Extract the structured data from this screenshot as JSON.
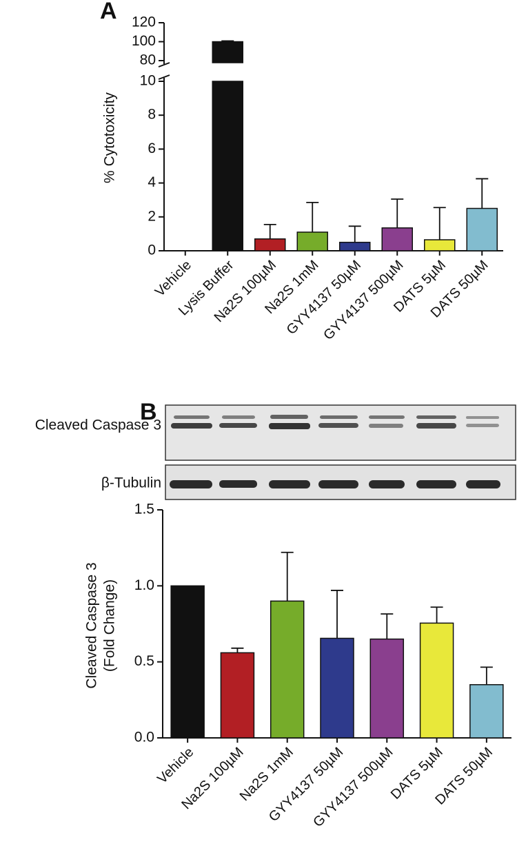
{
  "chart_data": [
    {
      "type": "bar",
      "panel": "A",
      "ylabel": "% Cytotoxicity",
      "categories": [
        "Vehicle",
        "Lysis Buffer",
        "Na2S 100µM",
        "Na2S 1mM",
        "GYY4137 50µM",
        "GYY4137 500µM",
        "DATS 5µM",
        "DATS 50µM"
      ],
      "values": [
        0,
        100,
        0.7,
        1.1,
        0.5,
        1.35,
        0.65,
        2.5
      ],
      "errors": [
        0,
        0.8,
        0.85,
        1.75,
        0.95,
        1.7,
        1.9,
        1.75
      ],
      "colors": [
        "#111111",
        "#111111",
        "#b21f24",
        "#76ac2a",
        "#2e3a8c",
        "#8a3f8e",
        "#e8e83a",
        "#82bccf"
      ],
      "ylim": [
        0,
        120
      ],
      "axis_break": [
        10,
        80
      ],
      "yticks": [
        0,
        2,
        4,
        6,
        8,
        10,
        80,
        100,
        120
      ]
    },
    {
      "type": "bar",
      "panel": "B",
      "ylabel": [
        "Cleaved Caspase 3",
        "(Fold Change)"
      ],
      "blot_labels": [
        "Cleaved Caspase 3",
        "β-Tubulin"
      ],
      "categories": [
        "Vehicle",
        "Na2S 100µM",
        "Na2S 1mM",
        "GYY4137 50µM",
        "GYY4137 500µM",
        "DATS 5µM",
        "DATS 50µM"
      ],
      "values": [
        1.0,
        0.56,
        0.9,
        0.655,
        0.65,
        0.755,
        0.35
      ],
      "errors": [
        0,
        0.03,
        0.32,
        0.315,
        0.165,
        0.105,
        0.115
      ],
      "colors": [
        "#111111",
        "#b21f24",
        "#76ac2a",
        "#2e3a8c",
        "#8a3f8e",
        "#e8e83a",
        "#82bccf"
      ],
      "ylim": [
        0,
        1.5
      ],
      "yticks": [
        {
          "value": 0,
          "label": "0.0"
        },
        0.5,
        {
          "value": 1,
          "label": "1.0"
        },
        1.5
      ]
    }
  ]
}
